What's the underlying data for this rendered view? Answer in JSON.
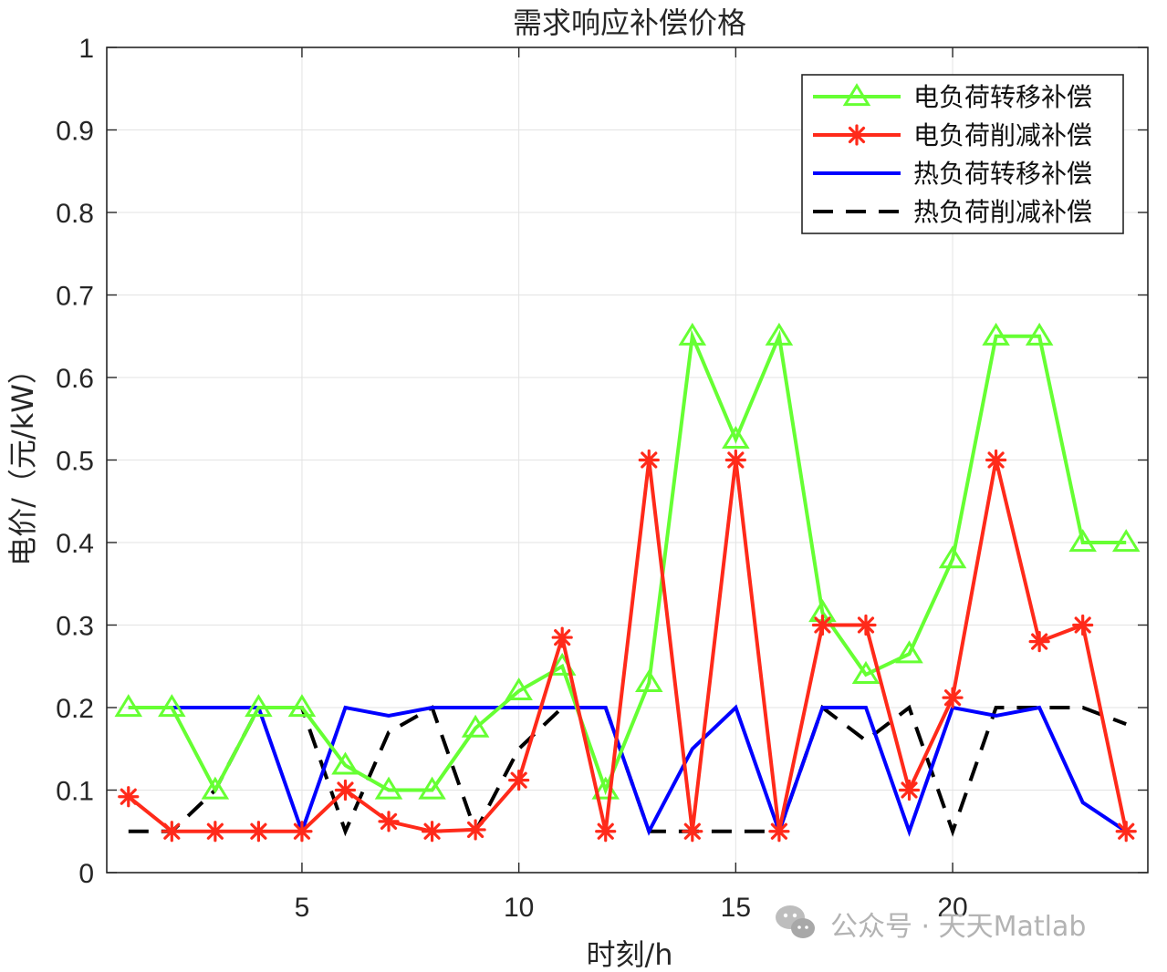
{
  "chart_data": {
    "type": "line",
    "title": "需求响应补偿价格",
    "xlabel": "时刻/h",
    "ylabel": "电价/（元/kW）",
    "xlim": [
      0.5,
      24.5
    ],
    "ylim": [
      0,
      1
    ],
    "xticks": [
      5,
      10,
      15,
      20
    ],
    "yticks": [
      0,
      0.1,
      0.2,
      0.3,
      0.4,
      0.5,
      0.6,
      0.7,
      0.8,
      0.9,
      1
    ],
    "ytick_labels": [
      "0",
      "0.1",
      "0.2",
      "0.3",
      "0.4",
      "0.5",
      "0.6",
      "0.7",
      "0.8",
      "0.9",
      "1"
    ],
    "grid": true,
    "legend_position": "top-right",
    "x": [
      1,
      2,
      3,
      4,
      5,
      6,
      7,
      8,
      9,
      10,
      11,
      12,
      13,
      14,
      15,
      16,
      17,
      18,
      19,
      20,
      21,
      22,
      23,
      24
    ],
    "series": [
      {
        "name": "电负荷转移补偿",
        "color": "#66ff33",
        "marker": "triangle",
        "dash": "solid",
        "values": [
          0.2,
          0.2,
          0.1,
          0.2,
          0.2,
          0.13,
          0.1,
          0.1,
          0.175,
          0.22,
          0.25,
          0.1,
          0.23,
          0.65,
          0.525,
          0.65,
          0.315,
          0.24,
          0.265,
          0.38,
          0.65,
          0.65,
          0.4,
          0.4
        ]
      },
      {
        "name": "电负荷削减补偿",
        "color": "#ff2a1a",
        "marker": "star",
        "dash": "solid",
        "values": [
          0.092,
          0.05,
          0.05,
          0.05,
          0.05,
          0.1,
          0.062,
          0.05,
          0.052,
          0.112,
          0.285,
          0.05,
          0.5,
          0.05,
          0.5,
          0.05,
          0.3,
          0.3,
          0.1,
          0.212,
          0.5,
          0.28,
          0.3,
          0.05
        ]
      },
      {
        "name": "热负荷转移补偿",
        "color": "#0000ff",
        "marker": "none",
        "dash": "solid",
        "values": [
          0.2,
          0.2,
          0.2,
          0.2,
          0.05,
          0.2,
          0.19,
          0.2,
          0.2,
          0.2,
          0.2,
          0.2,
          0.05,
          0.15,
          0.2,
          0.05,
          0.2,
          0.2,
          0.05,
          0.2,
          0.19,
          0.2,
          0.085,
          0.05
        ]
      },
      {
        "name": "热负荷削减补偿",
        "color": "#000000",
        "marker": "none",
        "dash": "dashed",
        "values": [
          0.05,
          0.05,
          0.1,
          0.2,
          0.2,
          0.05,
          0.17,
          0.2,
          0.05,
          0.15,
          0.2,
          0.2,
          0.05,
          0.05,
          0.05,
          0.05,
          0.2,
          0.16,
          0.2,
          0.05,
          0.2,
          0.2,
          0.2,
          0.18
        ]
      }
    ]
  },
  "watermark": {
    "icon": "wechat-icon",
    "text": "公众号 · 天天Matlab"
  }
}
